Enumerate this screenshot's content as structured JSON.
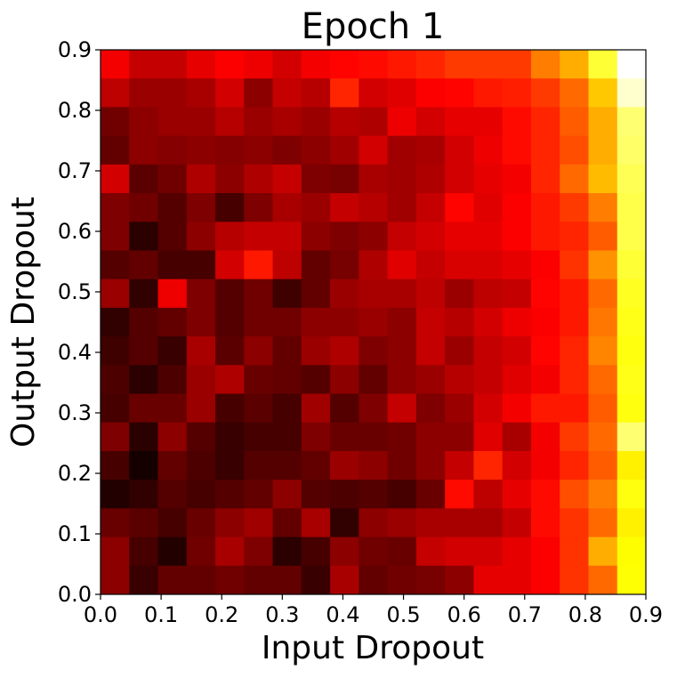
{
  "chart_data": {
    "type": "heatmap",
    "title": "Epoch 1",
    "x_label": "Input Dropout",
    "y_label": "Output Dropout",
    "colormap": "hot",
    "origin": "upper",
    "xlim": [
      0,
      0.9
    ],
    "ylim": [
      0,
      0.9
    ],
    "xticks": [
      {
        "value": 0,
        "label": "0.0"
      },
      0.1,
      0.2,
      0.3,
      0.4,
      0.5,
      0.6,
      0.7,
      0.8,
      0.9
    ],
    "yticks": [
      {
        "value": 0,
        "label": "0.0"
      },
      0.1,
      0.2,
      0.3,
      0.4,
      0.5,
      0.6,
      0.7,
      0.8,
      0.9
    ],
    "z": [
      [
        0.35,
        0.28,
        0.28,
        0.33,
        0.36,
        0.34,
        0.3,
        0.35,
        0.37,
        0.38,
        0.4,
        0.42,
        0.45,
        0.45,
        0.45,
        0.55,
        0.62,
        0.8,
        1.0
      ],
      [
        0.27,
        0.22,
        0.22,
        0.24,
        0.3,
        0.2,
        0.28,
        0.26,
        0.42,
        0.3,
        0.32,
        0.36,
        0.37,
        0.4,
        0.41,
        0.45,
        0.52,
        0.66,
        0.95
      ],
      [
        0.16,
        0.2,
        0.22,
        0.22,
        0.26,
        0.22,
        0.24,
        0.22,
        0.26,
        0.25,
        0.34,
        0.3,
        0.33,
        0.33,
        0.38,
        0.42,
        0.5,
        0.62,
        0.86
      ],
      [
        0.14,
        0.2,
        0.19,
        0.2,
        0.19,
        0.2,
        0.18,
        0.2,
        0.23,
        0.3,
        0.23,
        0.24,
        0.3,
        0.34,
        0.38,
        0.42,
        0.48,
        0.62,
        0.85
      ],
      [
        0.3,
        0.13,
        0.16,
        0.25,
        0.2,
        0.25,
        0.28,
        0.18,
        0.17,
        0.24,
        0.23,
        0.25,
        0.3,
        0.33,
        0.35,
        0.42,
        0.52,
        0.64,
        0.83
      ],
      [
        0.18,
        0.16,
        0.12,
        0.18,
        0.1,
        0.18,
        0.24,
        0.22,
        0.28,
        0.26,
        0.23,
        0.28,
        0.37,
        0.32,
        0.36,
        0.4,
        0.45,
        0.55,
        0.82
      ],
      [
        0.18,
        0.06,
        0.12,
        0.2,
        0.26,
        0.28,
        0.28,
        0.2,
        0.18,
        0.2,
        0.28,
        0.3,
        0.33,
        0.33,
        0.36,
        0.4,
        0.42,
        0.5,
        0.82
      ],
      [
        0.12,
        0.14,
        0.1,
        0.1,
        0.3,
        0.4,
        0.27,
        0.14,
        0.17,
        0.25,
        0.32,
        0.28,
        0.31,
        0.31,
        0.33,
        0.36,
        0.44,
        0.58,
        0.8
      ],
      [
        0.22,
        0.07,
        0.34,
        0.18,
        0.12,
        0.16,
        0.09,
        0.14,
        0.22,
        0.24,
        0.24,
        0.27,
        0.22,
        0.27,
        0.28,
        0.37,
        0.4,
        0.52,
        0.78
      ],
      [
        0.07,
        0.12,
        0.14,
        0.18,
        0.12,
        0.16,
        0.16,
        0.2,
        0.2,
        0.22,
        0.2,
        0.28,
        0.26,
        0.3,
        0.34,
        0.36,
        0.4,
        0.54,
        0.77
      ],
      [
        0.09,
        0.12,
        0.08,
        0.24,
        0.13,
        0.2,
        0.14,
        0.22,
        0.25,
        0.18,
        0.2,
        0.28,
        0.22,
        0.28,
        0.3,
        0.37,
        0.42,
        0.56,
        0.76
      ],
      [
        0.11,
        0.06,
        0.11,
        0.22,
        0.25,
        0.15,
        0.14,
        0.12,
        0.2,
        0.14,
        0.2,
        0.22,
        0.26,
        0.28,
        0.32,
        0.35,
        0.42,
        0.52,
        0.77
      ],
      [
        0.1,
        0.15,
        0.15,
        0.22,
        0.1,
        0.13,
        0.1,
        0.23,
        0.12,
        0.18,
        0.28,
        0.18,
        0.22,
        0.3,
        0.35,
        0.4,
        0.4,
        0.5,
        0.76
      ],
      [
        0.18,
        0.06,
        0.2,
        0.12,
        0.08,
        0.1,
        0.1,
        0.18,
        0.15,
        0.15,
        0.16,
        0.2,
        0.2,
        0.32,
        0.24,
        0.35,
        0.45,
        0.52,
        0.86
      ],
      [
        0.1,
        0.03,
        0.14,
        0.11,
        0.08,
        0.12,
        0.12,
        0.14,
        0.22,
        0.2,
        0.16,
        0.2,
        0.28,
        0.42,
        0.3,
        0.35,
        0.42,
        0.5,
        0.72
      ],
      [
        0.05,
        0.07,
        0.12,
        0.1,
        0.12,
        0.14,
        0.2,
        0.12,
        0.11,
        0.12,
        0.1,
        0.15,
        0.38,
        0.27,
        0.33,
        0.38,
        0.48,
        0.55,
        0.76
      ],
      [
        0.15,
        0.13,
        0.1,
        0.15,
        0.2,
        0.23,
        0.14,
        0.24,
        0.07,
        0.2,
        0.22,
        0.24,
        0.24,
        0.24,
        0.28,
        0.38,
        0.44,
        0.52,
        0.72
      ],
      [
        0.2,
        0.1,
        0.05,
        0.16,
        0.24,
        0.18,
        0.06,
        0.1,
        0.2,
        0.16,
        0.15,
        0.28,
        0.3,
        0.3,
        0.33,
        0.36,
        0.44,
        0.62,
        0.74
      ],
      [
        0.2,
        0.08,
        0.14,
        0.14,
        0.16,
        0.14,
        0.14,
        0.08,
        0.24,
        0.14,
        0.16,
        0.17,
        0.2,
        0.33,
        0.33,
        0.36,
        0.44,
        0.52,
        0.75
      ]
    ]
  }
}
